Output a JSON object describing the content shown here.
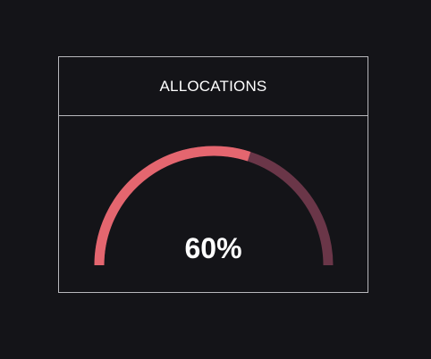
{
  "widget": {
    "title": "ALLOCATIONS",
    "value_label": "60%",
    "value_fraction": 0.6
  },
  "colors": {
    "background": "#141418",
    "border": "#b8b8bc",
    "gauge_fill": "#e4666f",
    "gauge_track": "#6a3648",
    "text": "#ffffff"
  }
}
